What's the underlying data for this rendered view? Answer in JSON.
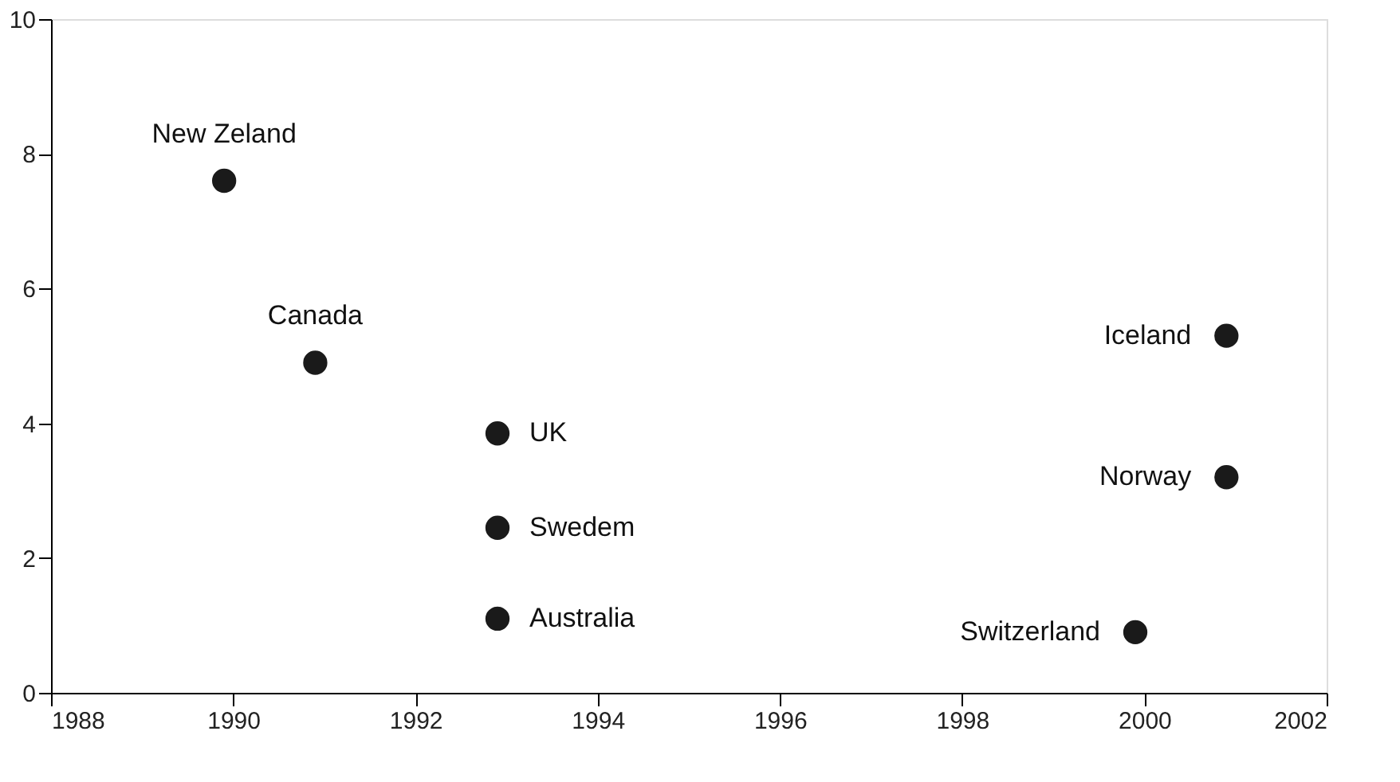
{
  "chart_data": {
    "type": "scatter",
    "x": [
      1989.9,
      1990.9,
      1992.9,
      1992.9,
      1992.9,
      1999.9,
      2000.9,
      2000.9
    ],
    "values": [
      7.6,
      4.9,
      3.85,
      2.45,
      1.1,
      0.9,
      5.3,
      3.2
    ],
    "color": "#1a1a1a",
    "marker": "circle",
    "xlim": [
      1988,
      2002
    ],
    "xticks": [
      1988,
      1990,
      1992,
      1994,
      1996,
      1998,
      2000,
      2002
    ],
    "ylim": [
      0,
      10
    ],
    "yticks": [
      0,
      2,
      4,
      6,
      8,
      10
    ],
    "grid": false,
    "annotations": [
      {
        "text": "New Zeland",
        "x": 1989.9,
        "y": 7.6
      },
      {
        "text": "Canada",
        "x": 1990.9,
        "y": 4.9
      },
      {
        "text": "UK",
        "x": 1992.9,
        "y": 3.85
      },
      {
        "text": "Swedem",
        "x": 1992.9,
        "y": 2.45
      },
      {
        "text": "Australia",
        "x": 1992.9,
        "y": 1.1
      },
      {
        "text": "Switzerland",
        "x": 1999.9,
        "y": 0.9
      },
      {
        "text": "Iceland",
        "x": 2000.9,
        "y": 5.3
      },
      {
        "text": "Norway",
        "x": 2000.9,
        "y": 3.2
      }
    ]
  }
}
